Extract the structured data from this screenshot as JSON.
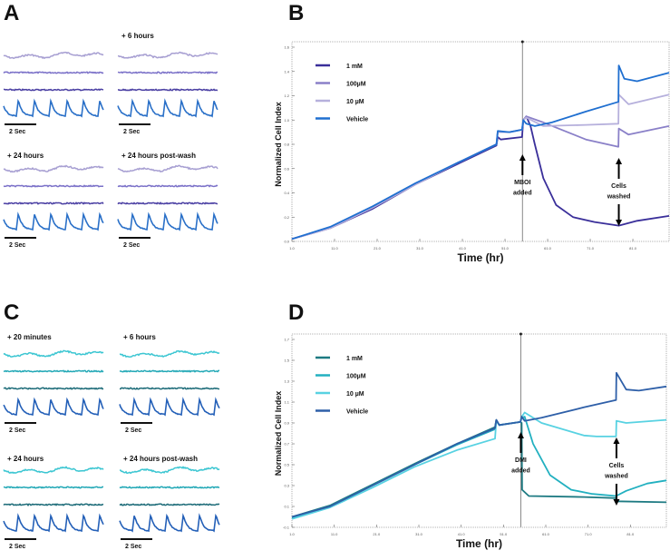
{
  "panel_letters": {
    "a": "A",
    "b": "B",
    "c": "C",
    "d": "D"
  },
  "panel_a": {
    "conditions": [
      "",
      "+ 6 hours",
      "+ 24 hours",
      "+ 24 hours post-wash"
    ],
    "scale_label": "2 Sec",
    "colors": [
      "#a79fd2",
      "#7a70c8",
      "#4a3fa3",
      "#2a70c8"
    ]
  },
  "panel_c": {
    "conditions": [
      "+ 20 minutes",
      "+ 6 hours",
      "+ 24 hours",
      "+ 24 hours post-wash"
    ],
    "scale_label": "2 Sec",
    "colors": [
      "#3cc6d2",
      "#22a8b6",
      "#1c6b78",
      "#2460b8"
    ]
  },
  "chart_data": [
    {
      "type": "line",
      "panel": "B",
      "xlabel": "Time (hr)",
      "ylabel": "Normalized Cell Index",
      "xlim": [
        1,
        89.5
      ],
      "ylim": [
        0,
        1.6
      ],
      "xticks": [
        "1.0",
        "11.0",
        "21.0",
        "31.0",
        "41.0",
        "51.0",
        "61.0",
        "71.0",
        "81.0"
      ],
      "xtick_values": [
        1,
        11,
        21,
        31,
        41,
        51,
        61,
        71,
        81
      ],
      "yticks": [
        "0.0",
        "0.2",
        "0.4",
        "0.6",
        "0.8",
        "1.0",
        "1.2",
        "1.4",
        "1.6"
      ],
      "ytick_values": [
        0,
        0.2,
        0.4,
        0.6,
        0.8,
        1.0,
        1.2,
        1.4,
        1.6
      ],
      "legend_position": "top-left",
      "annotations": [
        {
          "x": 55.1,
          "lines": [
            "MBOI",
            "added"
          ],
          "arrow": "up"
        },
        {
          "x": 77.7,
          "lines": [
            "Cells",
            "washed"
          ],
          "arrow": "both"
        }
      ],
      "series": [
        {
          "name": "1 mM",
          "color": "#3a2f9a",
          "points": [
            [
              1,
              0.02
            ],
            [
              10,
              0.11
            ],
            [
              20,
              0.27
            ],
            [
              30,
              0.47
            ],
            [
              40,
              0.64
            ],
            [
              49,
              0.79
            ],
            [
              49.3,
              0.86
            ],
            [
              50,
              0.84
            ],
            [
              55,
              0.86
            ],
            [
              55.3,
              1.0
            ],
            [
              56,
              1.03
            ],
            [
              57,
              0.95
            ],
            [
              58,
              0.8
            ],
            [
              60,
              0.52
            ],
            [
              63,
              0.3
            ],
            [
              67,
              0.2
            ],
            [
              72,
              0.16
            ],
            [
              77.7,
              0.13
            ],
            [
              82,
              0.17
            ],
            [
              89.5,
              0.21
            ]
          ]
        },
        {
          "name": "100µM",
          "color": "#8a80c8",
          "points": [
            [
              1,
              0.02
            ],
            [
              10,
              0.11
            ],
            [
              20,
              0.28
            ],
            [
              30,
              0.47
            ],
            [
              40,
              0.65
            ],
            [
              49,
              0.8
            ],
            [
              49.3,
              0.9
            ],
            [
              52,
              0.9
            ],
            [
              55,
              0.92
            ],
            [
              55.3,
              1.0
            ],
            [
              56,
              1.03
            ],
            [
              60,
              0.98
            ],
            [
              65,
              0.91
            ],
            [
              70,
              0.84
            ],
            [
              77.6,
              0.78
            ],
            [
              77.7,
              0.93
            ],
            [
              80,
              0.88
            ],
            [
              89.5,
              0.95
            ]
          ]
        },
        {
          "name": "10 µM",
          "color": "#b6b0dc",
          "points": [
            [
              1,
              0.02
            ],
            [
              10,
              0.11
            ],
            [
              20,
              0.28
            ],
            [
              30,
              0.47
            ],
            [
              40,
              0.65
            ],
            [
              49,
              0.8
            ],
            [
              49.3,
              0.9
            ],
            [
              52,
              0.9
            ],
            [
              55,
              0.92
            ],
            [
              55.3,
              1.0
            ],
            [
              56,
              1.02
            ],
            [
              60,
              0.95
            ],
            [
              70,
              0.96
            ],
            [
              77.6,
              0.97
            ],
            [
              77.7,
              1.21
            ],
            [
              80,
              1.13
            ],
            [
              89.5,
              1.21
            ]
          ]
        },
        {
          "name": "Vehicle",
          "color": "#1f6fd0",
          "points": [
            [
              1,
              0.02
            ],
            [
              10,
              0.12
            ],
            [
              20,
              0.29
            ],
            [
              30,
              0.48
            ],
            [
              40,
              0.65
            ],
            [
              49,
              0.8
            ],
            [
              49.3,
              0.91
            ],
            [
              52,
              0.9
            ],
            [
              55,
              0.92
            ],
            [
              55.3,
              1.0
            ],
            [
              56,
              0.97
            ],
            [
              58,
              0.95
            ],
            [
              62,
              0.98
            ],
            [
              70,
              1.07
            ],
            [
              77.6,
              1.15
            ],
            [
              77.7,
              1.45
            ],
            [
              79,
              1.34
            ],
            [
              82,
              1.32
            ],
            [
              89.5,
              1.39
            ]
          ]
        }
      ]
    },
    {
      "type": "line",
      "panel": "D",
      "xlabel": "Time (hr)",
      "ylabel": "Normalized Cell Index",
      "xlim": [
        1,
        89.5
      ],
      "ylim": [
        -0.1,
        1.7
      ],
      "xticks": [
        "1.0",
        "11.0",
        "21.0",
        "31.0",
        "41.0",
        "51.0",
        "61.0",
        "71.0",
        "81.0"
      ],
      "xtick_values": [
        1,
        11,
        21,
        31,
        41,
        51,
        61,
        71,
        81
      ],
      "yticks": [
        "-0.1",
        "0.1",
        "0.3",
        "0.5",
        "0.7",
        "0.9",
        "1.1",
        "1.3",
        "1.5",
        "1.7"
      ],
      "ytick_values": [
        -0.1,
        0.1,
        0.3,
        0.5,
        0.7,
        0.9,
        1.1,
        1.3,
        1.5,
        1.7
      ],
      "legend_position": "top-left",
      "annotations": [
        {
          "x": 55.1,
          "lines": [
            "DMI",
            "added"
          ],
          "arrow": "up"
        },
        {
          "x": 77.7,
          "lines": [
            "Cells",
            "washed"
          ],
          "arrow": "both"
        }
      ],
      "series": [
        {
          "name": "1 mM",
          "color": "#1d7a82",
          "points": [
            [
              1,
              0.0
            ],
            [
              10,
              0.11
            ],
            [
              20,
              0.31
            ],
            [
              30,
              0.51
            ],
            [
              40,
              0.7
            ],
            [
              49,
              0.86
            ],
            [
              49.3,
              0.93
            ],
            [
              50,
              0.88
            ],
            [
              55,
              0.91
            ],
            [
              55.3,
              0.9
            ],
            [
              55.4,
              0.26
            ],
            [
              57,
              0.2
            ],
            [
              70,
              0.19
            ],
            [
              77.6,
              0.18
            ],
            [
              77.7,
              0.15
            ],
            [
              89.5,
              0.14
            ]
          ]
        },
        {
          "name": "100µM",
          "color": "#22b0c0",
          "points": [
            [
              1,
              -0.01
            ],
            [
              10,
              0.1
            ],
            [
              20,
              0.3
            ],
            [
              30,
              0.5
            ],
            [
              40,
              0.69
            ],
            [
              49,
              0.84
            ],
            [
              49.3,
              0.92
            ],
            [
              50,
              0.88
            ],
            [
              55,
              0.91
            ],
            [
              55.3,
              0.95
            ],
            [
              56,
              0.96
            ],
            [
              58,
              0.7
            ],
            [
              62,
              0.4
            ],
            [
              67,
              0.26
            ],
            [
              72,
              0.22
            ],
            [
              77.6,
              0.2
            ],
            [
              80,
              0.25
            ],
            [
              85,
              0.32
            ],
            [
              89.5,
              0.35
            ]
          ]
        },
        {
          "name": "10 µM",
          "color": "#58d2e2",
          "points": [
            [
              1,
              -0.02
            ],
            [
              10,
              0.09
            ],
            [
              20,
              0.28
            ],
            [
              30,
              0.48
            ],
            [
              40,
              0.64
            ],
            [
              49,
              0.75
            ],
            [
              49.3,
              0.92
            ],
            [
              50,
              0.88
            ],
            [
              55,
              0.91
            ],
            [
              55.3,
              0.96
            ],
            [
              56,
              1.0
            ],
            [
              60,
              0.9
            ],
            [
              70,
              0.78
            ],
            [
              73,
              0.77
            ],
            [
              77.6,
              0.77
            ],
            [
              77.7,
              0.92
            ],
            [
              80,
              0.9
            ],
            [
              89.5,
              0.93
            ]
          ]
        },
        {
          "name": "Vehicle",
          "color": "#2e5fa8",
          "points": [
            [
              1,
              0.0
            ],
            [
              10,
              0.1
            ],
            [
              20,
              0.3
            ],
            [
              30,
              0.5
            ],
            [
              40,
              0.7
            ],
            [
              49,
              0.85
            ],
            [
              49.3,
              0.93
            ],
            [
              50,
              0.88
            ],
            [
              55,
              0.91
            ],
            [
              55.3,
              0.96
            ],
            [
              56,
              0.92
            ],
            [
              60,
              0.95
            ],
            [
              70,
              1.05
            ],
            [
              77.6,
              1.12
            ],
            [
              77.7,
              1.38
            ],
            [
              80,
              1.22
            ],
            [
              83,
              1.21
            ],
            [
              89.5,
              1.25
            ]
          ]
        }
      ]
    }
  ]
}
